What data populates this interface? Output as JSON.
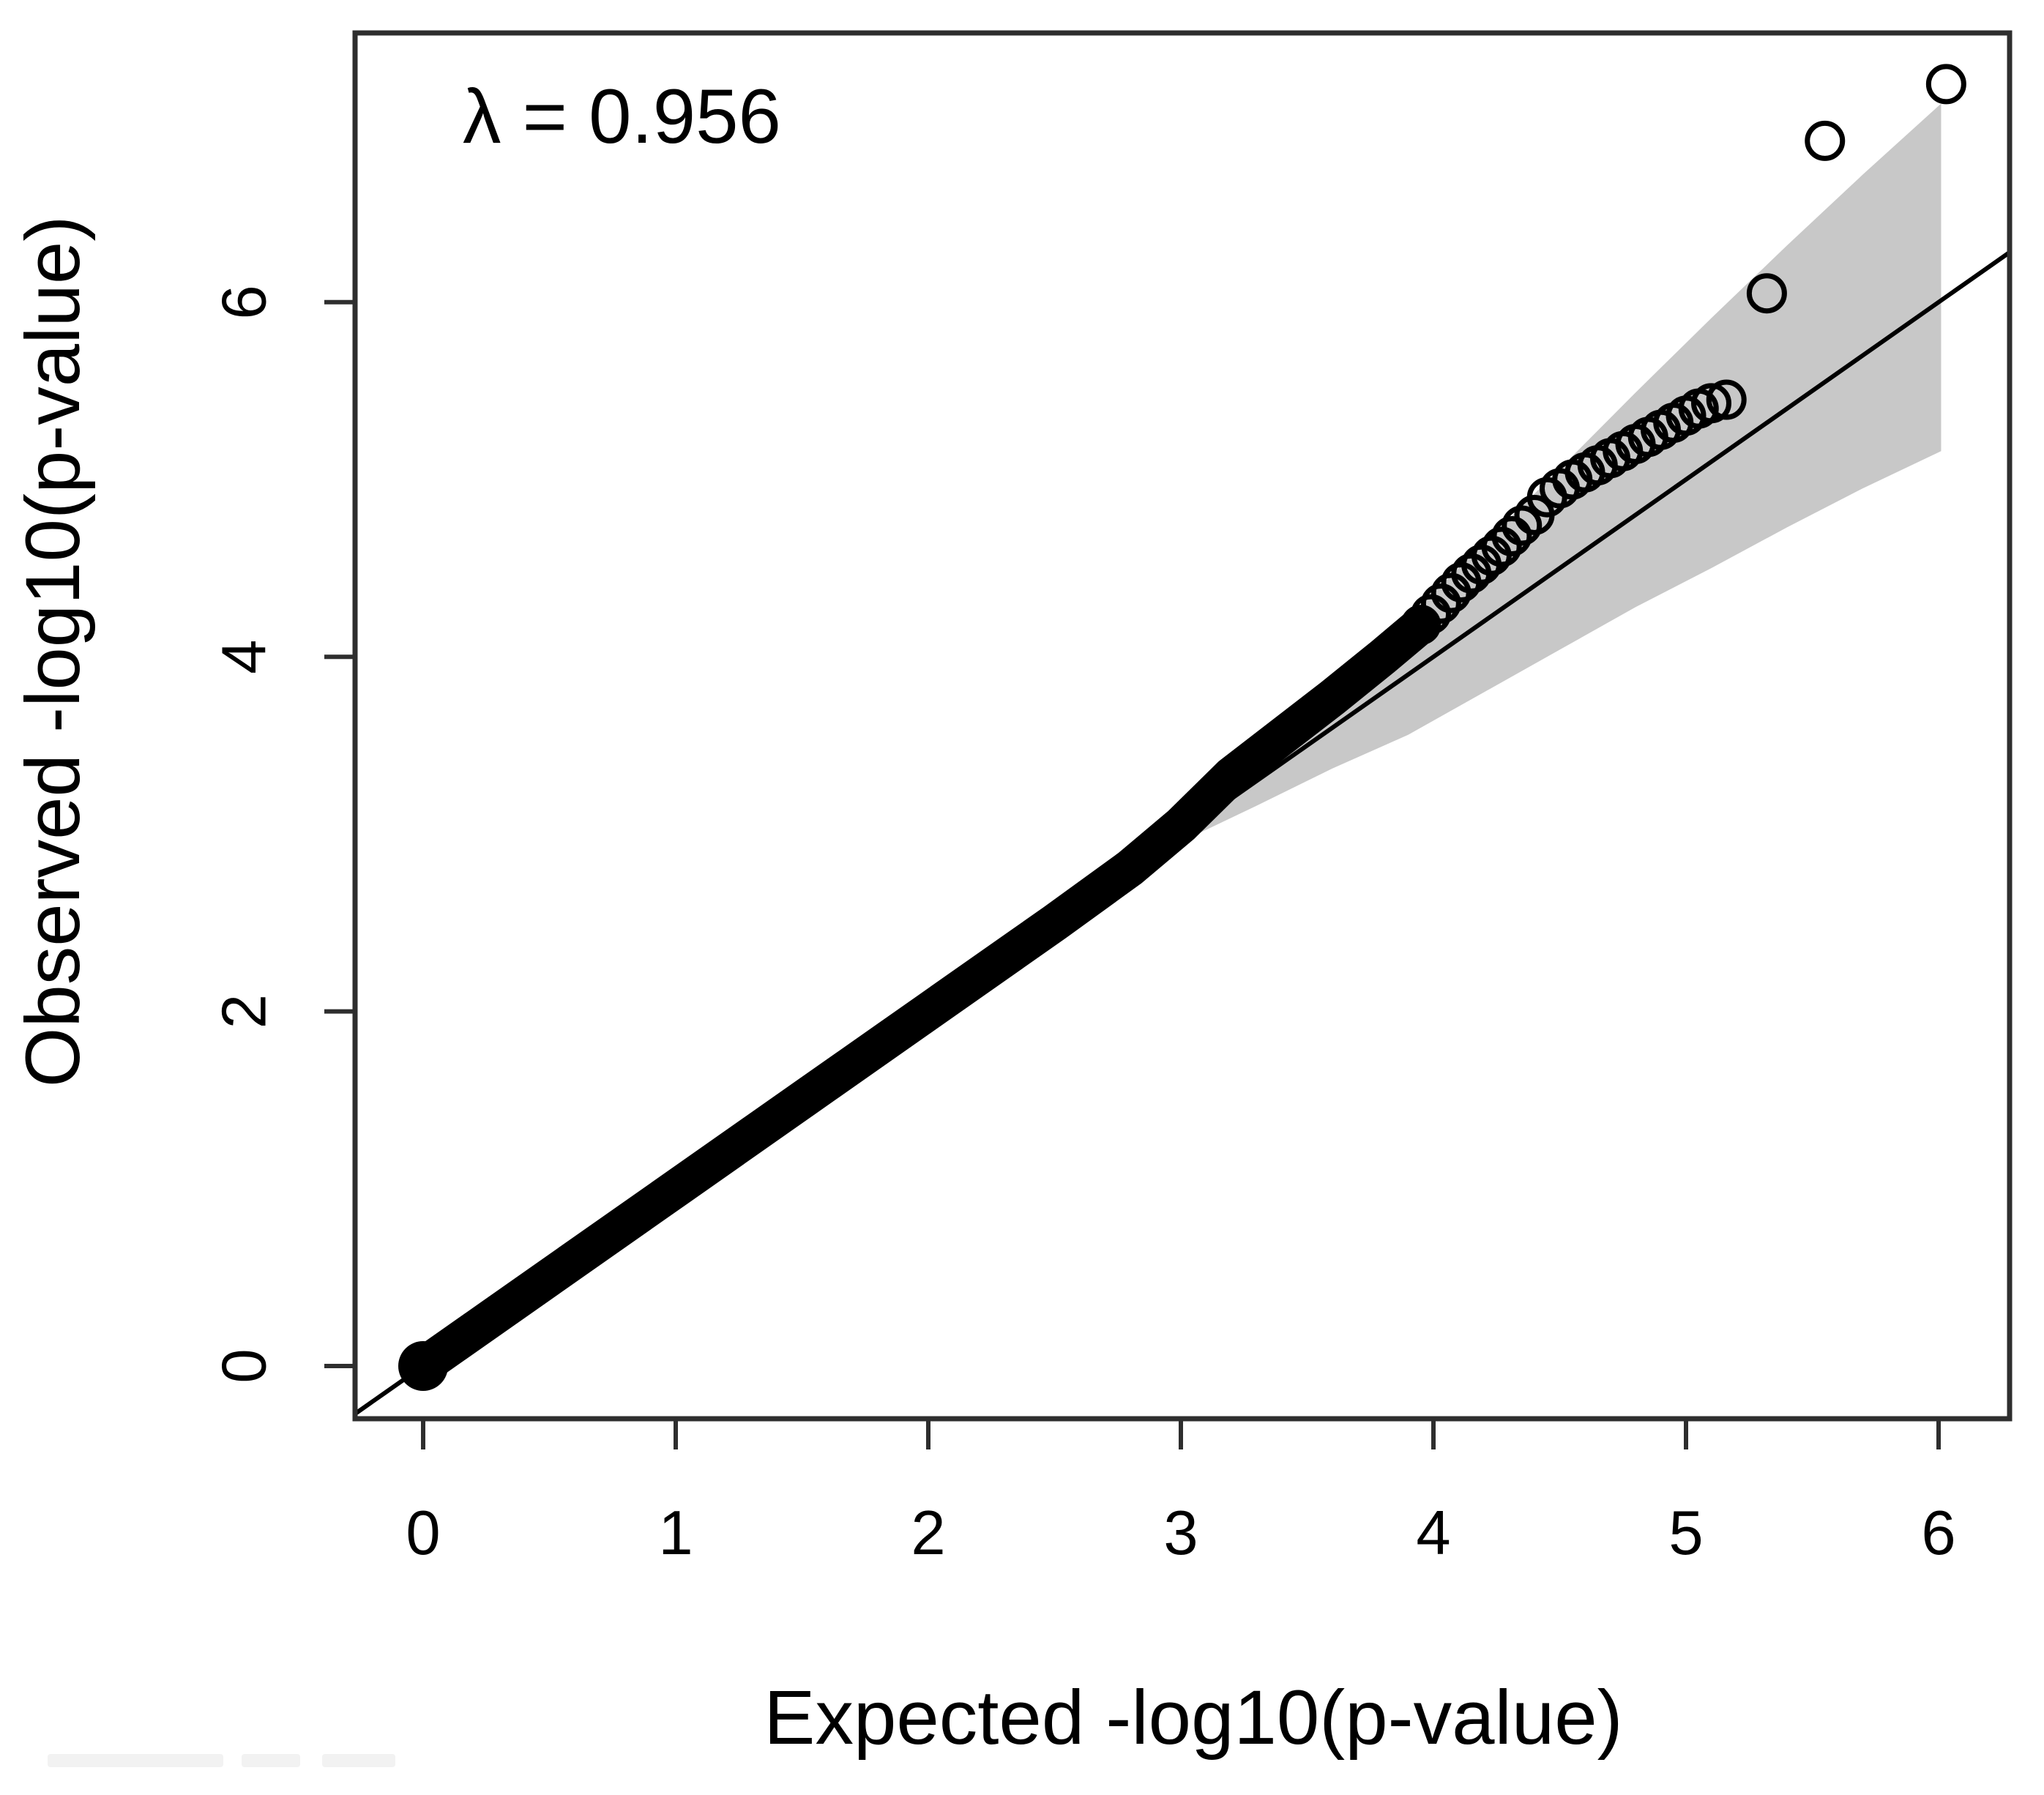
{
  "chart_data": {
    "type": "scatter",
    "subtype": "qq-plot",
    "title": "",
    "annotation": "λ = 0.956",
    "lambda_value": "0.956",
    "xlabel": "Expected -log10(p-value)",
    "ylabel": "Observed -log10(p-value)",
    "x_ticks": [
      0,
      1,
      2,
      3,
      4,
      5,
      6
    ],
    "y_ticks": [
      0,
      2,
      4,
      6
    ],
    "xlim": [
      -0.27,
      6.28
    ],
    "ylim": [
      -0.3,
      7.52
    ],
    "grid": false,
    "legend": "none",
    "reference_line": {
      "type": "identity y=x",
      "x_start": -0.3,
      "x_end": 6.3
    },
    "confidence_band": {
      "upper": [
        [
          3.02,
          2.97
        ],
        [
          3.3,
          3.38
        ],
        [
          3.6,
          3.8
        ],
        [
          3.9,
          4.22
        ],
        [
          4.2,
          4.64
        ],
        [
          4.5,
          5.06
        ],
        [
          4.8,
          5.49
        ],
        [
          5.1,
          5.91
        ],
        [
          5.4,
          6.32
        ],
        [
          5.7,
          6.72
        ],
        [
          6.01,
          7.12
        ]
      ],
      "lower": [
        [
          3.02,
          2.97
        ],
        [
          3.3,
          3.16
        ],
        [
          3.6,
          3.37
        ],
        [
          3.9,
          3.56
        ],
        [
          4.2,
          3.8
        ],
        [
          4.5,
          4.04
        ],
        [
          4.8,
          4.28
        ],
        [
          5.1,
          4.5
        ],
        [
          5.4,
          4.73
        ],
        [
          5.7,
          4.95
        ],
        [
          6.01,
          5.16
        ]
      ]
    },
    "series": [
      {
        "name": "observed-quantiles-dense",
        "style": "thick-overlapping-filled-points",
        "points": [
          [
            0,
            0
          ],
          [
            0.5,
            0.5
          ],
          [
            1.0,
            1.0
          ],
          [
            1.5,
            1.5
          ],
          [
            2.0,
            2.0
          ],
          [
            2.5,
            2.5
          ],
          [
            2.8,
            2.81
          ],
          [
            3.0,
            3.05
          ],
          [
            3.2,
            3.33
          ],
          [
            3.4,
            3.55
          ],
          [
            3.6,
            3.77
          ],
          [
            3.8,
            4.0
          ],
          [
            3.95,
            4.18
          ]
        ]
      },
      {
        "name": "observed-quantiles-ring-cluster",
        "style": "overlapping-open-circles",
        "points": [
          [
            3.95,
            4.18
          ],
          [
            3.99,
            4.24
          ],
          [
            4.03,
            4.3
          ],
          [
            4.07,
            4.36
          ],
          [
            4.11,
            4.42
          ],
          [
            4.15,
            4.47
          ],
          [
            4.19,
            4.52
          ],
          [
            4.23,
            4.57
          ],
          [
            4.27,
            4.62
          ],
          [
            4.31,
            4.68
          ],
          [
            4.35,
            4.74
          ],
          [
            4.4,
            4.8
          ]
        ]
      },
      {
        "name": "observed-quantiles-tail",
        "style": "open-circles",
        "points": [
          [
            4.45,
            4.9
          ],
          [
            4.5,
            4.95
          ],
          [
            4.55,
            5.0
          ],
          [
            4.6,
            5.04
          ],
          [
            4.65,
            5.08
          ],
          [
            4.7,
            5.12
          ],
          [
            4.75,
            5.16
          ],
          [
            4.8,
            5.2
          ],
          [
            4.85,
            5.24
          ],
          [
            4.9,
            5.28
          ],
          [
            4.95,
            5.32
          ],
          [
            5.0,
            5.36
          ],
          [
            5.05,
            5.4
          ],
          [
            5.1,
            5.43
          ],
          [
            5.16,
            5.45
          ]
        ]
      },
      {
        "name": "outliers",
        "style": "open-circles",
        "points": [
          [
            5.32,
            6.05
          ],
          [
            5.55,
            6.91
          ],
          [
            6.03,
            7.23
          ]
        ]
      }
    ]
  },
  "colors": {
    "background": "#ffffff",
    "band": "#c8c8c8",
    "points": "#000000",
    "reference_line": "#000000",
    "box": "#2e2e2e",
    "text": "#000000"
  }
}
